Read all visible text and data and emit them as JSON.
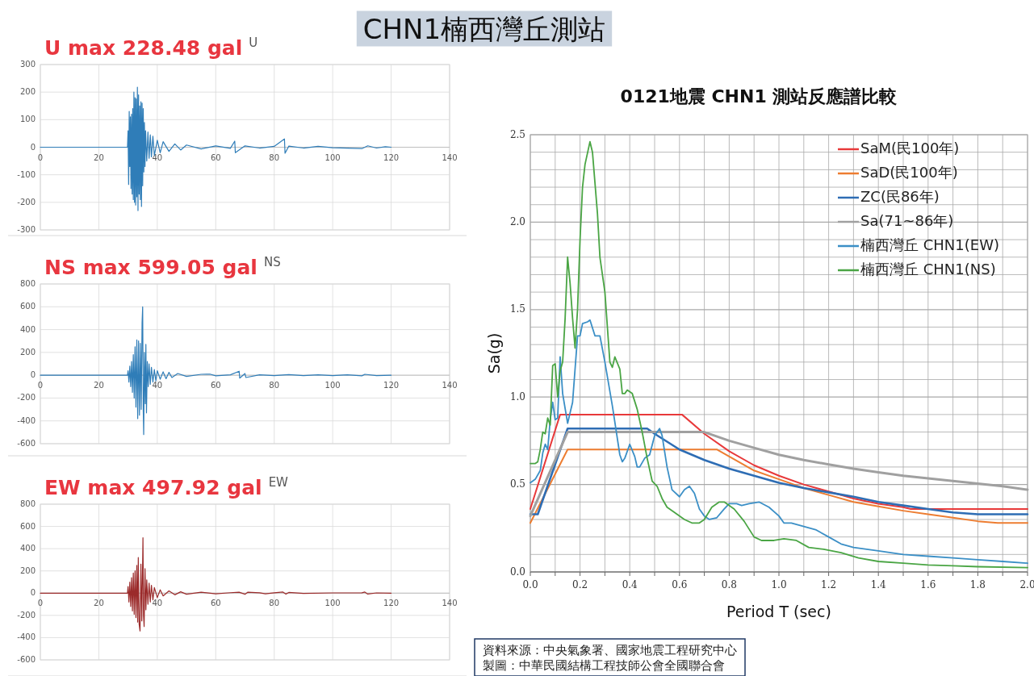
{
  "chart_data": [
    {
      "type": "other",
      "title": "CHN1楠西灣丘測站"
    },
    {
      "type": "line",
      "title": "U max 228.48 gal",
      "subtitle": "U",
      "xlim": [
        0,
        140
      ],
      "xticks": [
        0,
        20,
        40,
        60,
        80,
        100,
        120,
        140
      ],
      "ylim": [
        -300,
        300
      ],
      "yticks": [
        -300,
        -200,
        -100,
        0,
        100,
        200,
        300
      ],
      "grid": true,
      "legend": false,
      "series": [
        {
          "color": "#2f7db8",
          "x": [
            0,
            29.8,
            30.0,
            30.2,
            30.4,
            30.6,
            30.8,
            31.0,
            31.2,
            31.4,
            31.6,
            31.8,
            32.0,
            32.2,
            32.4,
            32.6,
            32.8,
            33.0,
            33.2,
            33.4,
            33.6,
            33.8,
            34.0,
            34.2,
            34.4,
            34.6,
            34.8,
            35.0,
            35.2,
            35.4,
            35.6,
            35.8,
            36.0,
            36.4,
            36.8,
            37.2,
            37.6,
            38.0,
            38.5,
            39,
            40,
            41,
            42,
            44,
            46,
            48,
            50,
            55,
            60,
            65,
            66.5,
            66.7,
            70,
            75,
            80,
            83.5,
            83.7,
            85,
            90,
            95,
            100,
            110,
            112,
            115,
            118,
            120
          ],
          "values": [
            0,
            0,
            60,
            -135,
            130,
            -70,
            110,
            -150,
            120,
            -170,
            140,
            -190,
            200,
            -200,
            180,
            -210,
            175,
            -180,
            218,
            -230,
            190,
            -170,
            150,
            -190,
            165,
            -215,
            160,
            -140,
            140,
            -90,
            90,
            -70,
            60,
            -50,
            55,
            -40,
            45,
            -35,
            40,
            -30,
            25,
            -20,
            20,
            -15,
            12,
            -10,
            8,
            -6,
            5,
            -4,
            22,
            -20,
            5,
            -3,
            3,
            30,
            -22,
            4,
            -3,
            3,
            -2,
            -5,
            5,
            -3,
            2,
            0
          ]
        }
      ]
    },
    {
      "type": "line",
      "title": "NS max 599.05 gal",
      "subtitle": "NS",
      "xlim": [
        0,
        140
      ],
      "xticks": [
        0,
        20,
        40,
        60,
        80,
        100,
        120,
        140
      ],
      "ylim": [
        -600,
        800
      ],
      "yticks": [
        -600,
        -400,
        -200,
        0,
        200,
        400,
        600,
        800
      ],
      "grid": true,
      "legend": false,
      "series": [
        {
          "color": "#2f7db8",
          "x": [
            0,
            29.8,
            30,
            30.3,
            30.6,
            30.9,
            31.2,
            31.5,
            31.8,
            32.1,
            32.4,
            32.7,
            33.0,
            33.3,
            33.6,
            33.9,
            34.2,
            34.5,
            34.8,
            35.0,
            35.2,
            35.35,
            35.6,
            35.9,
            36.1,
            36.3,
            36.6,
            36.9,
            37.2,
            37.6,
            38,
            38.5,
            39,
            39.5,
            40,
            41,
            42,
            43,
            44,
            45,
            47,
            50,
            55,
            58,
            60,
            65,
            68,
            68.2,
            70,
            70.3,
            75,
            80,
            85,
            90,
            95,
            100,
            105,
            110,
            111,
            115,
            120
          ],
          "values": [
            0,
            0,
            40,
            -60,
            80,
            -100,
            120,
            -150,
            180,
            -200,
            250,
            -280,
            310,
            -380,
            300,
            -350,
            280,
            -300,
            460,
            599,
            -300,
            -520,
            200,
            -250,
            270,
            -330,
            120,
            -100,
            100,
            -80,
            70,
            -60,
            50,
            -50,
            40,
            -35,
            30,
            -30,
            25,
            -20,
            15,
            -10,
            8,
            10,
            -5,
            4,
            35,
            -25,
            15,
            -20,
            4,
            -4,
            5,
            -4,
            3,
            -3,
            3,
            -5,
            8,
            -4,
            0
          ]
        }
      ]
    },
    {
      "type": "line",
      "title": "EW max 497.92 gal",
      "subtitle": "EW",
      "xlim": [
        0,
        140
      ],
      "xticks": [
        0,
        20,
        40,
        60,
        80,
        100,
        120,
        140
      ],
      "ylim": [
        -600,
        800
      ],
      "yticks": [
        -600,
        -400,
        -200,
        0,
        200,
        400,
        600,
        800
      ],
      "grid": true,
      "legend": false,
      "series": [
        {
          "color": "#9b2b2b",
          "x": [
            0,
            29.8,
            30,
            30.3,
            30.6,
            30.9,
            31.2,
            31.5,
            31.8,
            32.1,
            32.4,
            32.7,
            33.0,
            33.3,
            33.5,
            33.8,
            34.1,
            34.4,
            34.7,
            35.0,
            35.1,
            35.3,
            35.5,
            35.8,
            36.1,
            36.4,
            36.8,
            37.2,
            37.6,
            38,
            38.5,
            39,
            40,
            41,
            42,
            44,
            46,
            48,
            50,
            55,
            60,
            65,
            68,
            70,
            71,
            75,
            77,
            80,
            83,
            84,
            85,
            90,
            100,
            110,
            111,
            112,
            115,
            120
          ],
          "values": [
            0,
            0,
            60,
            -80,
            100,
            -120,
            140,
            -160,
            180,
            -190,
            200,
            -220,
            250,
            -260,
            320,
            -280,
            -340,
            260,
            -250,
            300,
            498,
            -200,
            -300,
            220,
            -150,
            120,
            -100,
            90,
            -80,
            70,
            -60,
            50,
            -40,
            30,
            -25,
            20,
            -15,
            12,
            -10,
            8,
            -6,
            4,
            8,
            -10,
            9,
            3,
            -6,
            3,
            10,
            -8,
            6,
            -3,
            2,
            3,
            10,
            -8,
            2,
            0
          ]
        }
      ]
    },
    {
      "type": "line",
      "title": "0121地震 CHN1 測站反應譜比較",
      "xlabel": "Period T (sec)",
      "ylabel": "Sa(g)",
      "xlim": [
        0,
        2
      ],
      "xticks": [
        {
          "value": 0,
          "label": "0.0"
        },
        {
          "value": 0.1,
          "label": null
        },
        {
          "value": 0.2,
          "label": "0.2"
        },
        {
          "value": 0.3,
          "label": null
        },
        {
          "value": 0.4,
          "label": "0.4"
        },
        {
          "value": 0.5,
          "label": null
        },
        {
          "value": 0.6,
          "label": "0.6"
        },
        {
          "value": 0.7,
          "label": null
        },
        {
          "value": 0.8,
          "label": "0.8"
        },
        {
          "value": 0.9,
          "label": null
        },
        {
          "value": 1,
          "label": "1.0"
        },
        {
          "value": 1.1,
          "label": null
        },
        {
          "value": 1.2,
          "label": "1.2"
        },
        {
          "value": 1.3,
          "label": null
        },
        {
          "value": 1.4,
          "label": "1.4"
        },
        {
          "value": 1.5,
          "label": null
        },
        {
          "value": 1.6,
          "label": "1.6"
        },
        {
          "value": 1.7,
          "label": null
        },
        {
          "value": 1.8,
          "label": "1.8"
        },
        {
          "value": 1.9,
          "label": null
        },
        {
          "value": 2,
          "label": "2.0"
        }
      ],
      "ylim": [
        0,
        2.5
      ],
      "yticks": [
        {
          "value": 0,
          "label": "0.0"
        },
        {
          "value": 0.1,
          "label": null
        },
        {
          "value": 0.2,
          "label": null
        },
        {
          "value": 0.3,
          "label": null
        },
        {
          "value": 0.4,
          "label": null
        },
        {
          "value": 0.5,
          "label": "0.5"
        },
        {
          "value": 0.6,
          "label": null
        },
        {
          "value": 0.7,
          "label": null
        },
        {
          "value": 0.8,
          "label": null
        },
        {
          "value": 0.9,
          "label": null
        },
        {
          "value": 1,
          "label": "1.0"
        },
        {
          "value": 1.1,
          "label": null
        },
        {
          "value": 1.2,
          "label": null
        },
        {
          "value": 1.3,
          "label": null
        },
        {
          "value": 1.4,
          "label": null
        },
        {
          "value": 1.5,
          "label": "1.5"
        },
        {
          "value": 1.6,
          "label": null
        },
        {
          "value": 1.7,
          "label": null
        },
        {
          "value": 1.8,
          "label": null
        },
        {
          "value": 1.9,
          "label": null
        },
        {
          "value": 2,
          "label": "2.0"
        },
        {
          "value": 2.1,
          "label": null
        },
        {
          "value": 2.2,
          "label": null
        },
        {
          "value": 2.3,
          "label": null
        },
        {
          "value": 2.4,
          "label": null
        },
        {
          "value": 2.5,
          "label": "2.5"
        }
      ],
      "grid": true,
      "legend": "top right",
      "annotations": [
        "資料來源：中央氣象署、國家地震工程研究中心",
        "製圖：中華民國結構工程技師公會全國聯合會"
      ],
      "series": [
        {
          "name": "SaM(民100年)",
          "color": "#e8393a",
          "x": [
            0,
            0.12,
            0.61,
            0.7,
            0.8,
            0.9,
            1.0,
            1.1,
            1.2,
            1.3,
            1.4,
            1.5,
            1.53,
            2.0
          ],
          "values": [
            0.36,
            0.9,
            0.9,
            0.79,
            0.69,
            0.61,
            0.55,
            0.5,
            0.46,
            0.42,
            0.39,
            0.37,
            0.36,
            0.36
          ]
        },
        {
          "name": "SaD(民100年)",
          "color": "#ed7d31",
          "x": [
            0,
            0.15,
            0.75,
            0.8,
            0.9,
            1.0,
            1.1,
            1.2,
            1.3,
            1.4,
            1.5,
            1.6,
            1.7,
            1.8,
            1.88,
            2.0
          ],
          "values": [
            0.28,
            0.7,
            0.7,
            0.66,
            0.58,
            0.53,
            0.48,
            0.44,
            0.4,
            0.375,
            0.35,
            0.33,
            0.31,
            0.29,
            0.28,
            0.28
          ]
        },
        {
          "name": "ZC(民86年)",
          "color": "#2e6db4",
          "x": [
            0,
            0.03,
            0.15,
            0.47,
            0.5,
            0.6,
            0.7,
            0.8,
            0.9,
            1.0,
            1.1,
            1.2,
            1.3,
            1.4,
            1.5,
            1.6,
            1.7,
            1.8,
            2.0
          ],
          "values": [
            0.33,
            0.33,
            0.82,
            0.82,
            0.79,
            0.7,
            0.64,
            0.59,
            0.55,
            0.51,
            0.48,
            0.455,
            0.43,
            0.4,
            0.38,
            0.36,
            0.34,
            0.33,
            0.33
          ]
        },
        {
          "name": "Sa(71~86年)",
          "color": "#a0a0a0",
          "x": [
            0,
            0.15,
            0.7,
            0.8,
            0.9,
            1.0,
            1.1,
            1.2,
            1.3,
            1.4,
            1.5,
            1.6,
            1.7,
            1.8,
            1.9,
            2.0
          ],
          "values": [
            0.32,
            0.8,
            0.8,
            0.75,
            0.71,
            0.67,
            0.64,
            0.615,
            0.59,
            0.57,
            0.55,
            0.535,
            0.52,
            0.505,
            0.49,
            0.47
          ]
        },
        {
          "name": "楠西灣丘 CHN1(EW)",
          "color": "#3b8fc6",
          "x": [
            0,
            0.02,
            0.04,
            0.05,
            0.06,
            0.07,
            0.08,
            0.09,
            0.1,
            0.11,
            0.12,
            0.13,
            0.15,
            0.17,
            0.19,
            0.2,
            0.21,
            0.23,
            0.24,
            0.26,
            0.28,
            0.3,
            0.33,
            0.36,
            0.37,
            0.38,
            0.4,
            0.42,
            0.43,
            0.44,
            0.46,
            0.48,
            0.5,
            0.52,
            0.53,
            0.55,
            0.57,
            0.6,
            0.62,
            0.64,
            0.66,
            0.68,
            0.7,
            0.72,
            0.75,
            0.78,
            0.8,
            0.83,
            0.85,
            0.88,
            0.92,
            0.96,
            1.0,
            1.02,
            1.05,
            1.1,
            1.15,
            1.2,
            1.25,
            1.3,
            1.4,
            1.5,
            1.6,
            1.7,
            1.8,
            1.9,
            2.0
          ],
          "values": [
            0.51,
            0.53,
            0.58,
            0.68,
            0.73,
            0.7,
            0.87,
            0.97,
            0.87,
            0.88,
            1.23,
            1.02,
            0.85,
            0.97,
            1.35,
            1.35,
            1.42,
            1.43,
            1.44,
            1.35,
            1.35,
            1.2,
            0.95,
            0.67,
            0.63,
            0.65,
            0.73,
            0.66,
            0.6,
            0.6,
            0.65,
            0.67,
            0.78,
            0.82,
            0.78,
            0.6,
            0.47,
            0.43,
            0.47,
            0.49,
            0.45,
            0.36,
            0.32,
            0.3,
            0.31,
            0.36,
            0.39,
            0.39,
            0.38,
            0.39,
            0.4,
            0.37,
            0.32,
            0.28,
            0.28,
            0.26,
            0.24,
            0.2,
            0.16,
            0.14,
            0.12,
            0.1,
            0.09,
            0.08,
            0.07,
            0.06,
            0.05
          ]
        },
        {
          "name": "楠西灣丘 CHN1(NS)",
          "color": "#4aa544",
          "x": [
            0,
            0.02,
            0.03,
            0.04,
            0.05,
            0.06,
            0.07,
            0.08,
            0.09,
            0.1,
            0.11,
            0.12,
            0.13,
            0.14,
            0.15,
            0.16,
            0.17,
            0.18,
            0.19,
            0.2,
            0.21,
            0.22,
            0.24,
            0.25,
            0.27,
            0.28,
            0.3,
            0.32,
            0.33,
            0.34,
            0.36,
            0.37,
            0.38,
            0.39,
            0.41,
            0.43,
            0.45,
            0.47,
            0.49,
            0.51,
            0.53,
            0.55,
            0.58,
            0.62,
            0.65,
            0.68,
            0.7,
            0.73,
            0.76,
            0.78,
            0.82,
            0.86,
            0.9,
            0.93,
            0.98,
            1.02,
            1.07,
            1.12,
            1.18,
            1.25,
            1.32,
            1.4,
            1.5,
            1.6,
            1.7,
            1.8,
            2.0
          ],
          "values": [
            0.62,
            0.62,
            0.63,
            0.7,
            0.8,
            0.79,
            0.88,
            0.84,
            1.18,
            1.19,
            1.0,
            1.15,
            1.2,
            1.45,
            1.8,
            1.65,
            1.45,
            1.28,
            1.5,
            1.9,
            2.2,
            2.33,
            2.46,
            2.4,
            2.05,
            1.8,
            1.6,
            1.2,
            1.17,
            1.23,
            1.16,
            1.02,
            1.02,
            1.04,
            1.02,
            0.93,
            0.8,
            0.65,
            0.52,
            0.49,
            0.42,
            0.37,
            0.34,
            0.3,
            0.28,
            0.28,
            0.3,
            0.37,
            0.4,
            0.4,
            0.36,
            0.29,
            0.2,
            0.18,
            0.18,
            0.19,
            0.18,
            0.14,
            0.13,
            0.11,
            0.08,
            0.06,
            0.05,
            0.04,
            0.035,
            0.03,
            0.025
          ]
        }
      ]
    }
  ]
}
